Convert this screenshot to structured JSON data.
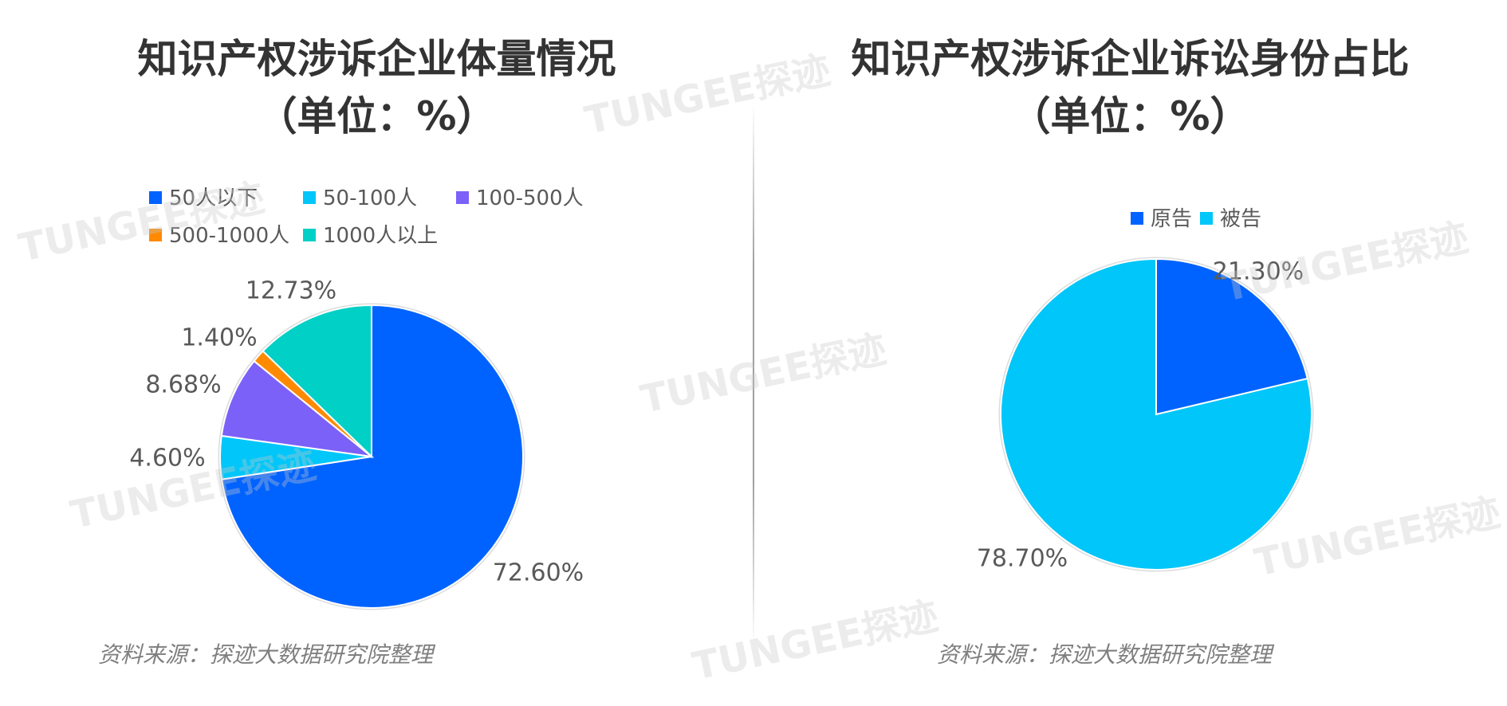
{
  "watermark_text": "TUNGEE探迹",
  "chart_data": [
    {
      "type": "pie",
      "title": "知识产权涉诉企业体量情况",
      "subtitle": "（单位：%）",
      "categories": [
        "50人以下",
        "50-100人",
        "100-500人",
        "500-1000人",
        "1000人以上"
      ],
      "values": [
        72.6,
        4.6,
        8.68,
        1.4,
        12.73
      ],
      "value_labels": [
        "72.60%",
        "4.60%",
        "8.68%",
        "1.40%",
        "12.73%"
      ],
      "colors": [
        "#0063FF",
        "#00C6F9",
        "#7B61F8",
        "#FF8A00",
        "#00D0C6"
      ],
      "start_angle_deg": 0,
      "direction": "clockwise",
      "legend_position": "top",
      "source": "资料来源：探迹大数据研究院整理"
    },
    {
      "type": "pie",
      "title": "知识产权涉诉企业诉讼身份占比",
      "subtitle": "（单位：%）",
      "categories": [
        "原告",
        "被告"
      ],
      "values": [
        21.3,
        78.7
      ],
      "value_labels": [
        "21.30%",
        "78.70%"
      ],
      "colors": [
        "#0063FF",
        "#00C6F9"
      ],
      "start_angle_deg": 0,
      "direction": "clockwise",
      "legend_position": "top",
      "source": "资料来源：探迹大数据研究院整理"
    }
  ]
}
